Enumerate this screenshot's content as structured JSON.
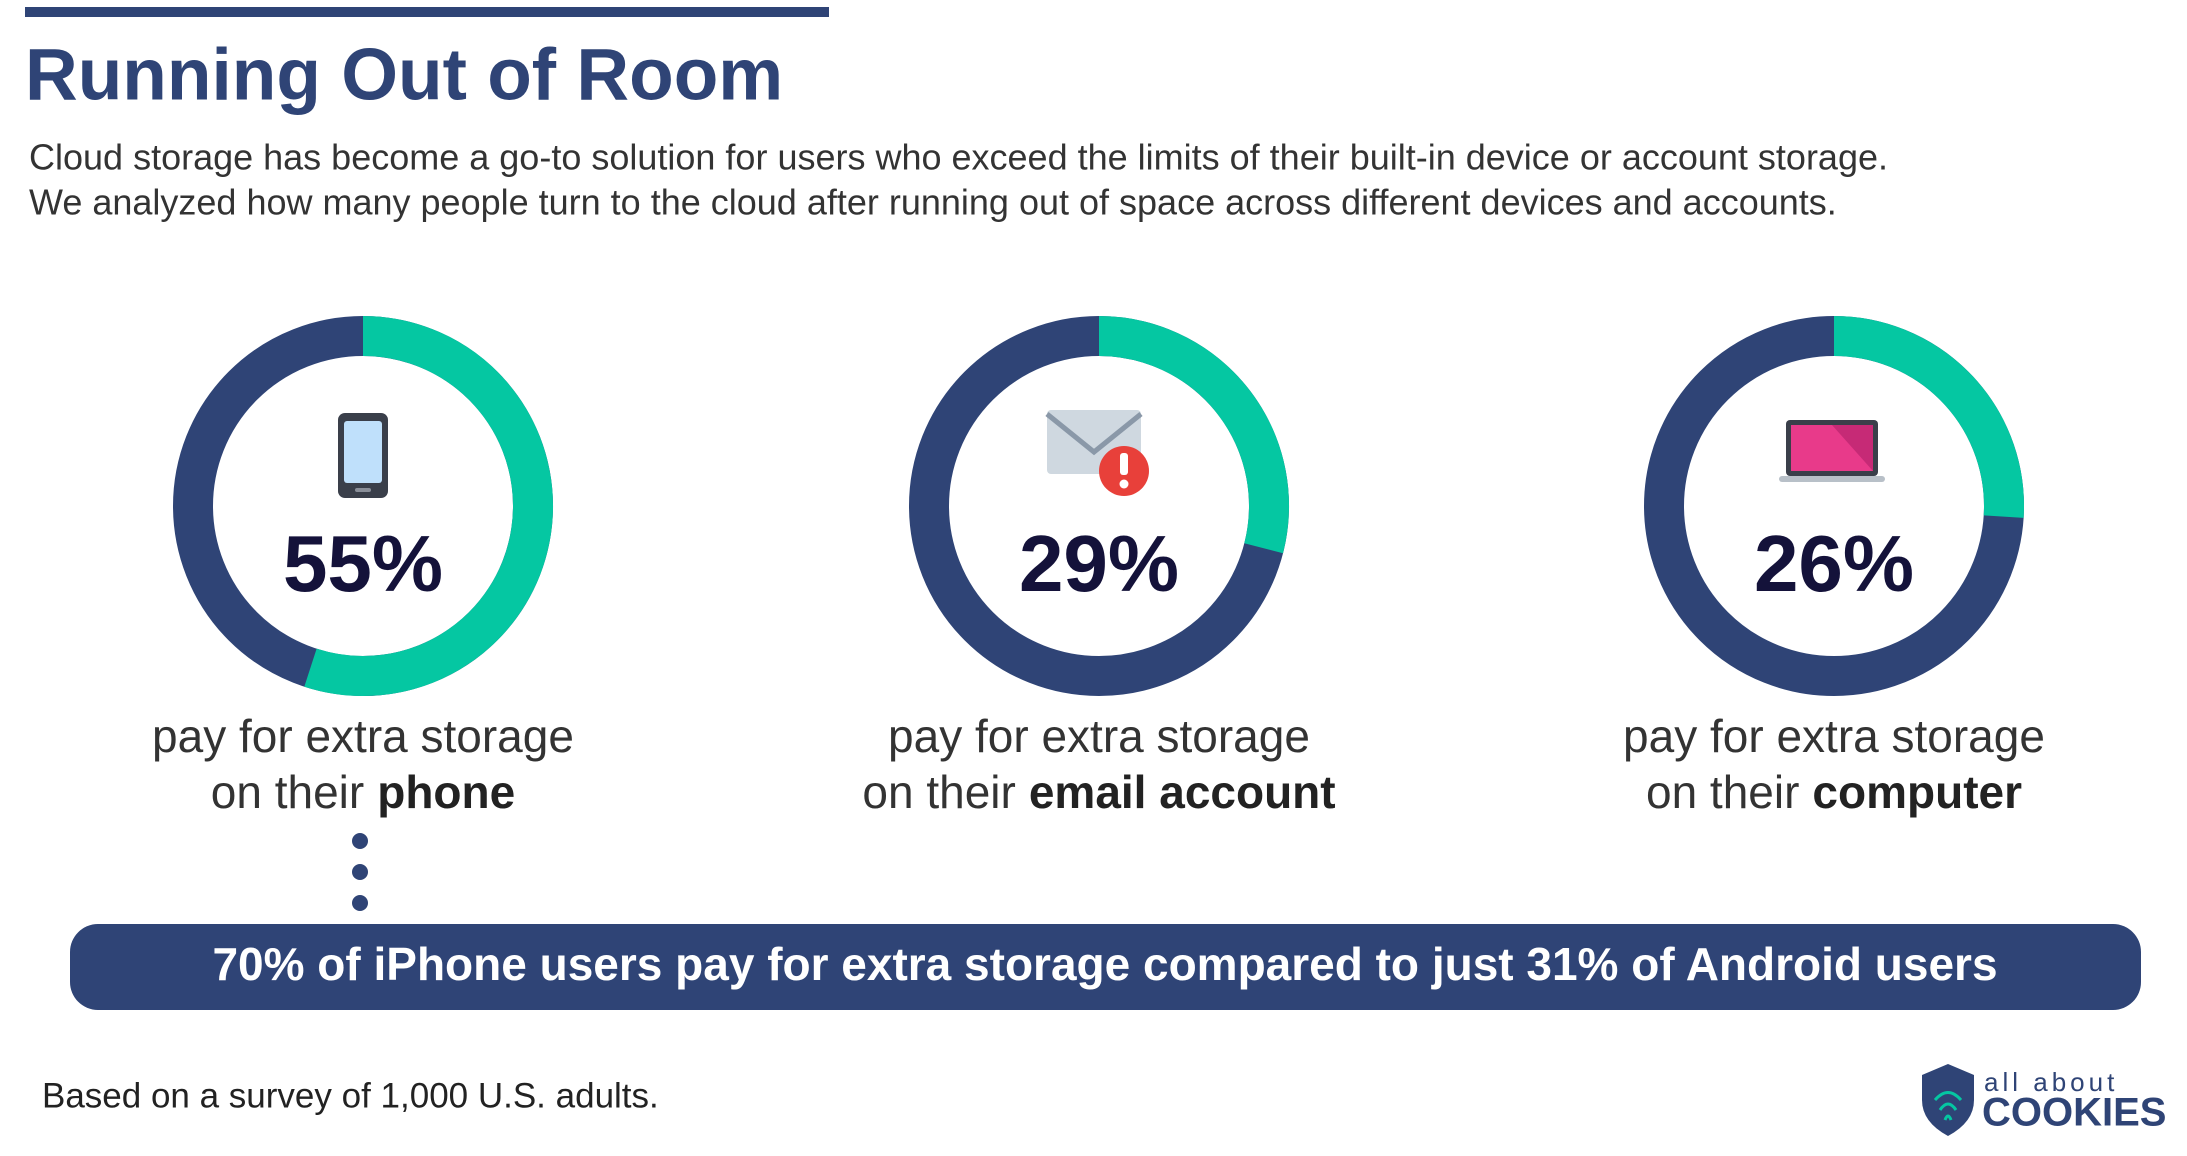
{
  "header": {
    "title": "Running Out of Room",
    "description": [
      "Cloud storage has become a go-to solution for users who exceed the limits of their built-in device or account storage.",
      "We analyzed how many people turn to the cloud after running out of space across different devices and accounts."
    ]
  },
  "chart_data": [
    {
      "type": "donut",
      "values": [
        55
      ],
      "value_labels": [
        "55%"
      ],
      "ylim": [
        0,
        100
      ],
      "color": "#05c7a2",
      "track_color": "#2f4476",
      "caption": "pay for extra storage",
      "caption_prefix": "on their",
      "caption_emphasis": "phone"
    },
    {
      "type": "donut",
      "values": [
        29
      ],
      "value_labels": [
        "29%"
      ],
      "ylim": [
        0,
        100
      ],
      "color": "#05c7a2",
      "track_color": "#2f4476",
      "caption": "pay for extra storage",
      "caption_prefix": "on their",
      "caption_emphasis": "email account"
    },
    {
      "type": "donut",
      "values": [
        26
      ],
      "value_labels": [
        "26%"
      ],
      "ylim": [
        0,
        100
      ],
      "color": "#05c7a2",
      "track_color": "#2f4476",
      "caption": "pay for extra storage",
      "caption_prefix": "on their",
      "caption_emphasis": "computer"
    }
  ],
  "callout": "70% of iPhone users pay for extra storage compared to just 31% of Android users",
  "footnote": "Based on a survey of 1,000 U.S. adults.",
  "logo": {
    "top": "all about",
    "bottom": "COOKIES"
  }
}
